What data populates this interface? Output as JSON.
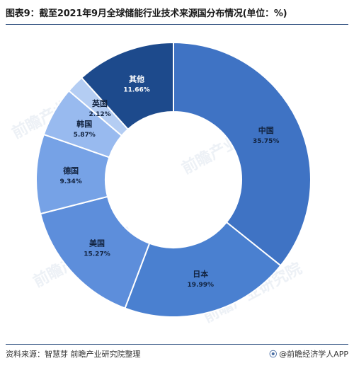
{
  "title": "图表9：截至2021年9月全球储能行业技术来源国分布情况(单位：%)",
  "source": "资料来源：智慧芽 前瞻产业研究院整理",
  "brand": "@前瞻经济学人APP",
  "watermark": "前瞻产业研究院",
  "chart_data": {
    "type": "pie",
    "variant": "donut",
    "title": "图表9：截至2021年9月全球储能行业技术来源国分布情况(单位：%)",
    "unit": "%",
    "categories": [
      "中国",
      "日本",
      "美国",
      "德国",
      "韩国",
      "英国",
      "其他"
    ],
    "values": [
      35.75,
      19.99,
      15.27,
      9.34,
      5.87,
      2.12,
      11.66
    ],
    "labels": [
      "35.75%",
      "19.99%",
      "15.27%",
      "9.34%",
      "5.87%",
      "2.12%",
      "11.66%"
    ],
    "colors": [
      "#3f73c4",
      "#4a80d0",
      "#5d8edb",
      "#76a2e6",
      "#98baef",
      "#b4cdf3",
      "#1d4a8c"
    ],
    "legend": "none"
  }
}
